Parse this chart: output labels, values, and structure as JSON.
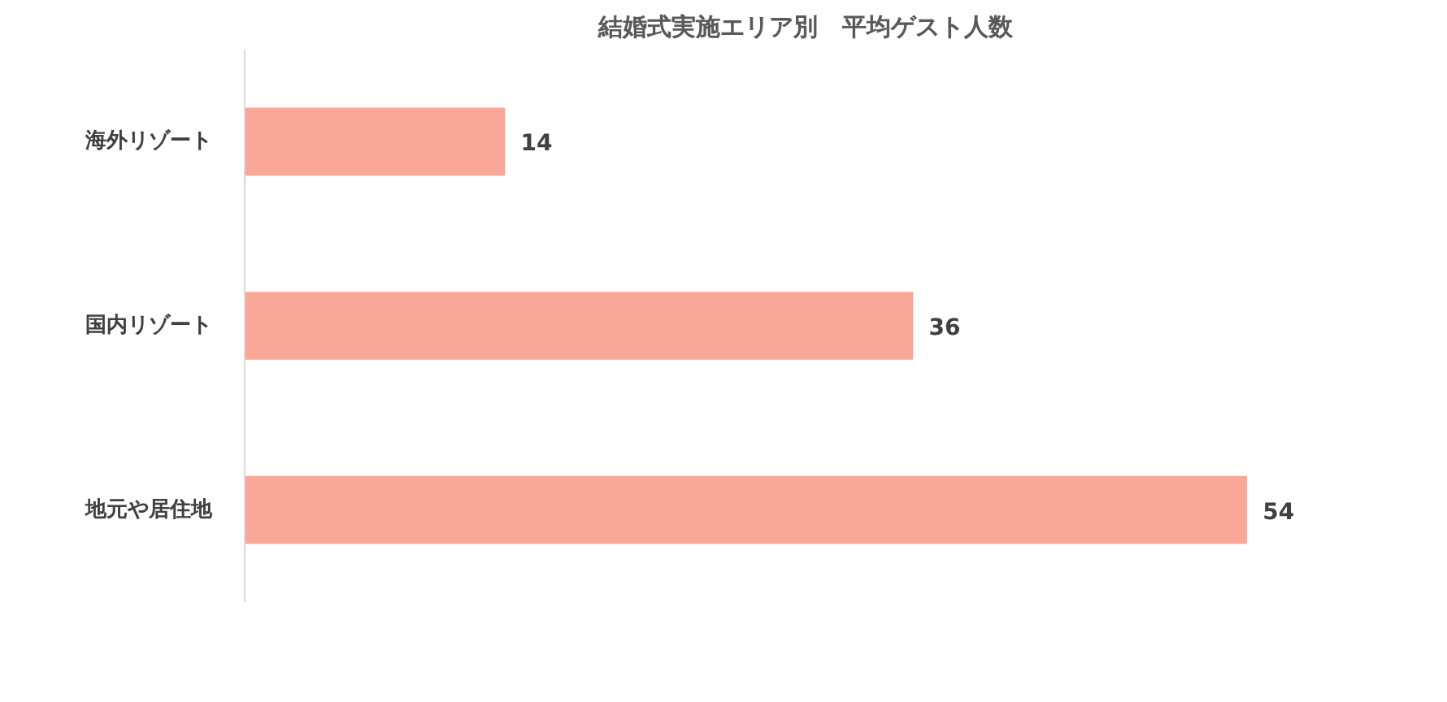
{
  "chart_data": {
    "type": "bar",
    "orientation": "horizontal",
    "title": "結婚式実施エリア別　平均ゲスト人数",
    "categories": [
      "海外リゾート",
      "国内リゾート",
      "地元や居住地"
    ],
    "values": [
      14,
      36,
      54
    ],
    "color": "#f9a797",
    "data_labels": true,
    "grid": false,
    "tick_labels": "y"
  }
}
